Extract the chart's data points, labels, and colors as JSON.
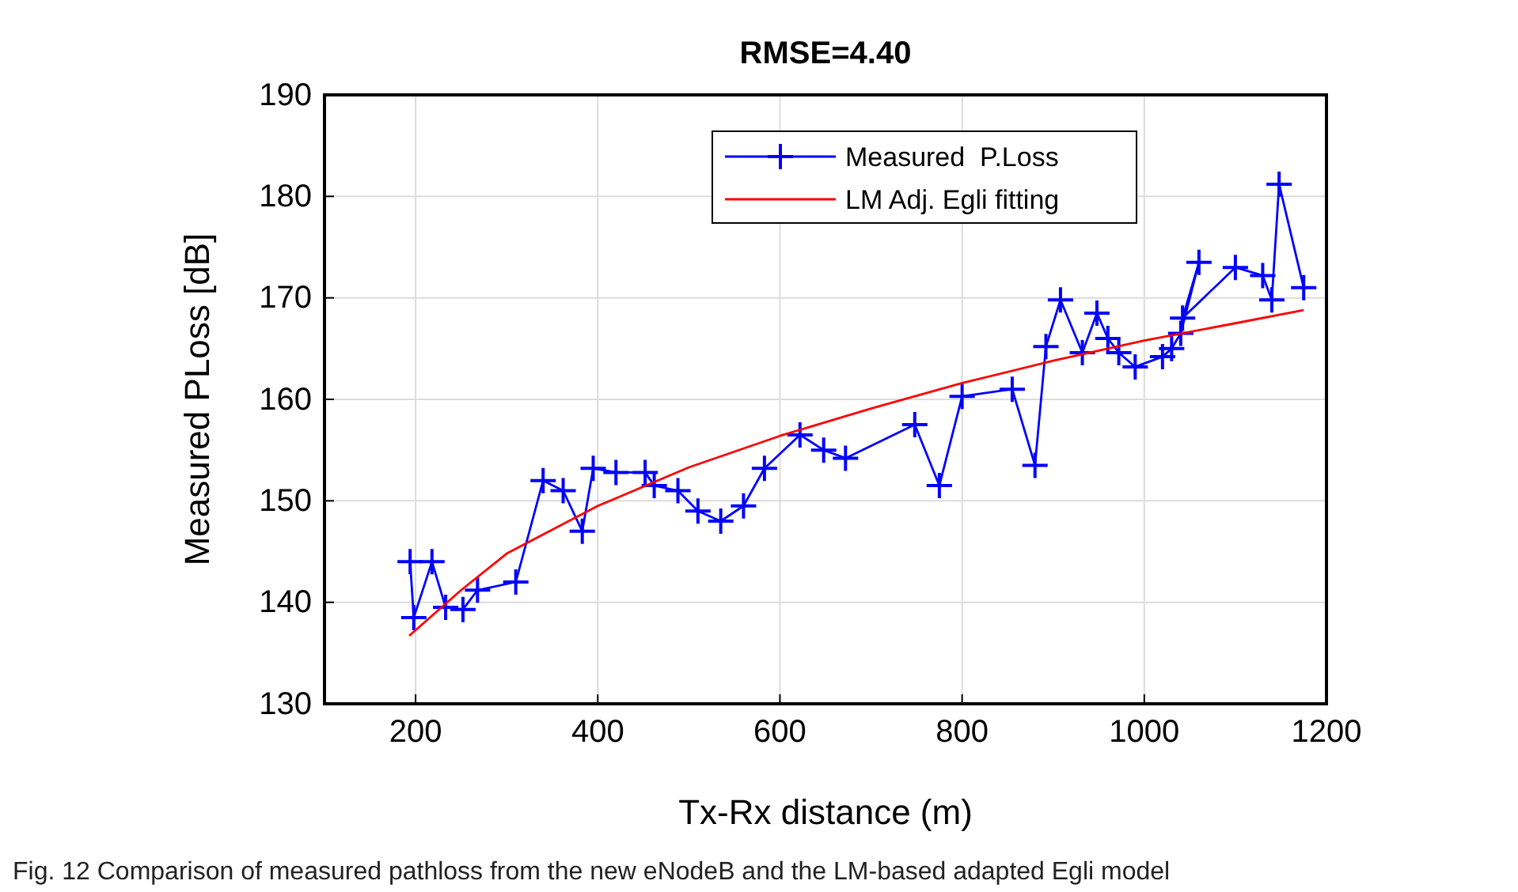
{
  "chart_data": {
    "type": "line",
    "title": "RMSE=4.40",
    "xlabel": "Tx-Rx distance (m)",
    "ylabel": "Measured  PLoss [dB]",
    "annotations": [
      "Fig. 12 Comparison of measured pathloss from the new eNodeB and the LM-based adapted Egli model"
    ],
    "xlim": [
      100,
      1200
    ],
    "xticks": [
      200,
      400,
      600,
      800,
      1000,
      1200
    ],
    "ylim": [
      130,
      190
    ],
    "yticks": [
      130,
      140,
      150,
      160,
      170,
      180,
      190
    ],
    "grid": true,
    "legend": "top right",
    "series": [
      {
        "name": "Measured  P.Loss",
        "color": "#0000ff",
        "marker": "cross",
        "x": [
          194,
          198,
          218,
          233,
          252,
          268,
          310,
          340,
          362,
          383,
          395,
          420,
          452,
          462,
          488,
          510,
          535,
          560,
          583,
          622,
          648,
          672,
          748,
          775,
          800,
          855,
          880,
          892,
          908,
          932,
          948,
          960,
          972,
          990,
          1020,
          1030,
          1040,
          1060,
          1042,
          1100,
          1130,
          1140,
          1148,
          1175
        ],
        "values": [
          144,
          138.5,
          144,
          139.5,
          139.3,
          141.2,
          142,
          152,
          151,
          147,
          153.2,
          152.8,
          152.8,
          151.5,
          151,
          149,
          148,
          149.5,
          153.2,
          156.5,
          155,
          154.2,
          157.5,
          151.5,
          160.3,
          161,
          153.5,
          165.2,
          169.8,
          164.6,
          168.5,
          166,
          164.6,
          163.2,
          164.2,
          165,
          166.5,
          173.5,
          168,
          173,
          172.2,
          169.8,
          181.2,
          171
        ]
      },
      {
        "name": "LM Adj. Egli fitting",
        "color": "#ff0000",
        "marker": "none",
        "x": [
          193,
          250,
          300,
          400,
          500,
          600,
          700,
          800,
          900,
          1000,
          1100,
          1175
        ],
        "values": [
          136.7,
          141.2,
          144.8,
          149.5,
          153.3,
          156.4,
          159.1,
          161.6,
          163.8,
          165.8,
          167.5,
          168.8
        ]
      }
    ]
  }
}
